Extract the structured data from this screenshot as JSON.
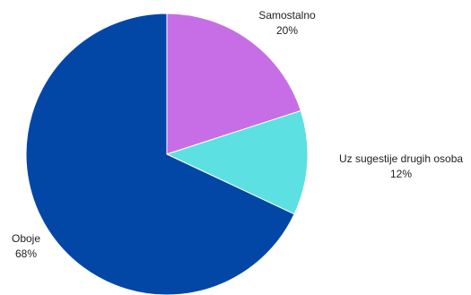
{
  "chart_data": {
    "type": "pie",
    "title": "",
    "start_angle_deg": 0,
    "direction": "clockwise",
    "slices": [
      {
        "label": "Samostalno",
        "value": 20,
        "value_label": "20%",
        "color": "#c76ee6"
      },
      {
        "label": "Uz sugestije drugih osoba",
        "value": 12,
        "value_label": "12%",
        "color": "#5ce0e2"
      },
      {
        "label": "Oboje",
        "value": 68,
        "value_label": "68%",
        "color": "#0347a6"
      }
    ]
  }
}
